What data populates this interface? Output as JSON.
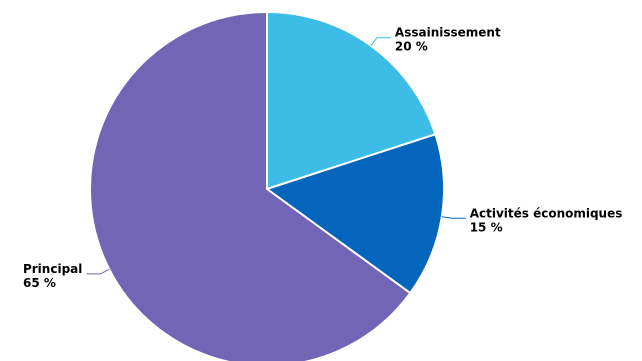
{
  "chart_data": {
    "type": "pie",
    "title": "",
    "slices": [
      {
        "label": "Assainissement",
        "value": 20,
        "value_label": "20 %",
        "color": "#3dbde6"
      },
      {
        "label": "Activités économiques",
        "value": 15,
        "value_label": "15 %",
        "color": "#0465bd"
      },
      {
        "label": "Principal",
        "value": 65,
        "value_label": "65 %",
        "color": "#7265b6"
      }
    ],
    "start_angle_deg": 0,
    "direction": "clockwise",
    "legend": "none",
    "data_labels": "outside-with-connectors"
  }
}
